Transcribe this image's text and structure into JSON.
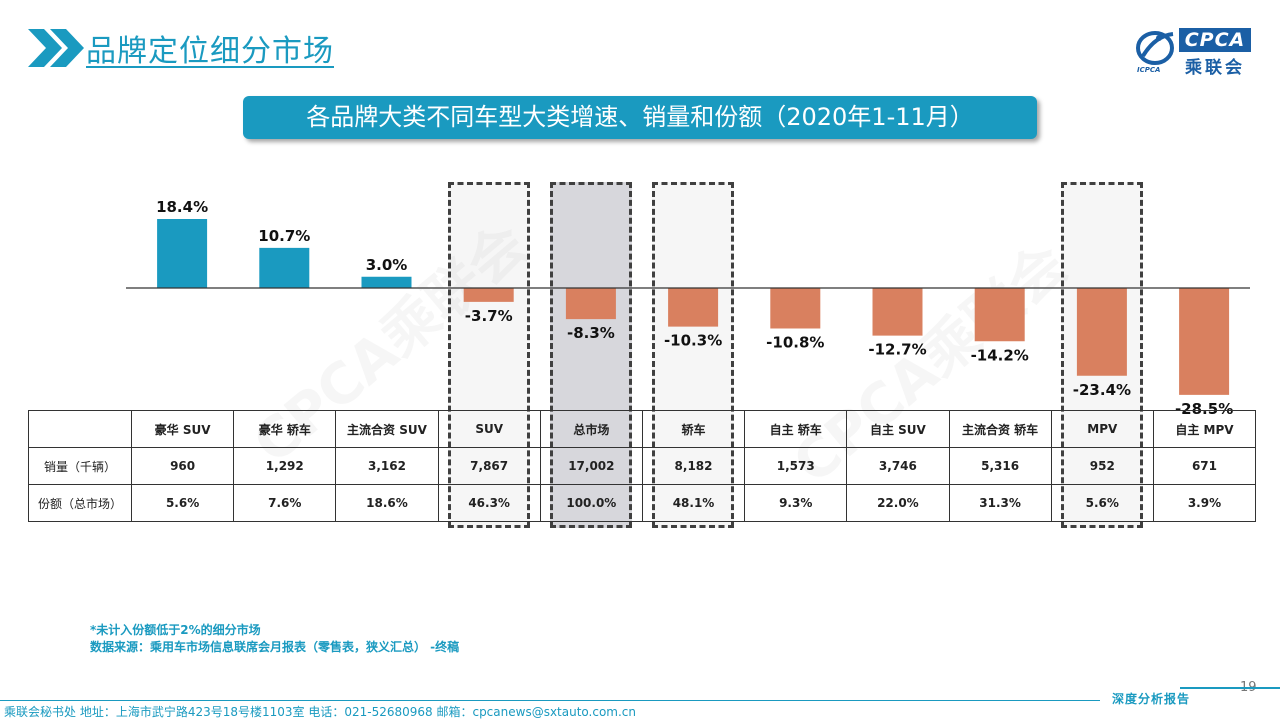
{
  "header": {
    "title": "品牌定位细分市场",
    "logo_text": "CPCA",
    "logo_cn": "乘联会",
    "logo_sub": "ICPCA"
  },
  "banner": "各品牌大类不同车型大类增速、销量和份额（2020年1-11月）",
  "watermark": "CPCA乘联会",
  "colors": {
    "accent": "#1A9AC0",
    "positive": "#1A9AC0",
    "negative": "#D9805F"
  },
  "chart_data": {
    "type": "bar",
    "categories": [
      "豪华 SUV",
      "豪华 轿车",
      "主流合资 SUV",
      "SUV",
      "总市场",
      "轿车",
      "自主 轿车",
      "自主 SUV",
      "主流合资 轿车",
      "MPV",
      "自主 MPV"
    ],
    "values": [
      18.4,
      10.7,
      3.0,
      -3.7,
      -8.3,
      -10.3,
      -10.8,
      -12.7,
      -14.2,
      -23.4,
      -28.5
    ],
    "value_labels": [
      "18.4%",
      "10.7%",
      "3.0%",
      "-3.7%",
      "-8.3%",
      "-10.3%",
      "-10.8%",
      "-12.7%",
      "-14.2%",
      "-23.4%",
      "-28.5%"
    ],
    "unit": "%",
    "highlighted": [
      "SUV",
      "总市场",
      "轿车",
      "MPV"
    ]
  },
  "table": {
    "rows": [
      {
        "label": "销量（千辆）",
        "values": [
          "960",
          "1,292",
          "3,162",
          "7,867",
          "17,002",
          "8,182",
          "1,573",
          "3,746",
          "5,316",
          "952",
          "671"
        ]
      },
      {
        "label": "份额（总市场）",
        "values": [
          "5.6%",
          "7.6%",
          "18.6%",
          "46.3%",
          "100.0%",
          "48.1%",
          "9.3%",
          "22.0%",
          "31.3%",
          "5.6%",
          "3.9%"
        ]
      }
    ]
  },
  "notes": {
    "line1": "*未计入份额低于2%的细分市场",
    "line2": "数据来源：乘用车市场信息联席会月报表（零售表，狭义汇总） -终稿"
  },
  "page_number": "19",
  "footer": {
    "address": "乘联会秘书处   地址：上海市武宁路423号18号楼1103室    电话：021-52680968     邮箱：cpcanews@sxtauto.com.cn",
    "report": "深度分析报告"
  }
}
